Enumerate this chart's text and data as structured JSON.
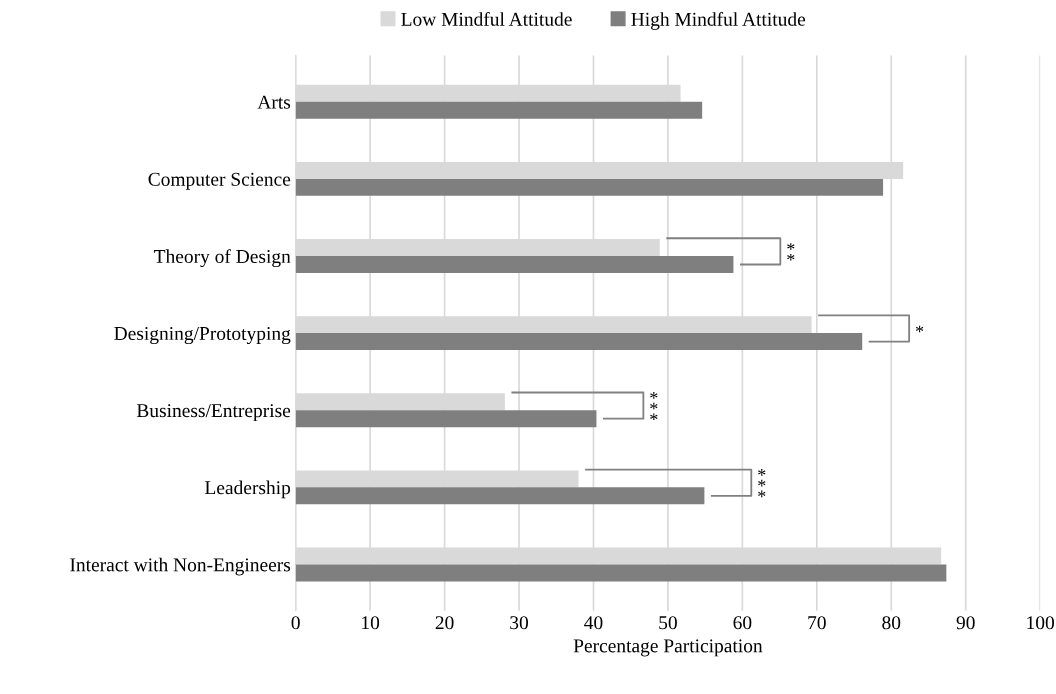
{
  "chart_data": {
    "type": "bar",
    "orientation": "horizontal",
    "xlabel": "Percentage Participation",
    "categories": [
      "Arts",
      "Computer Science",
      "Theory of Design",
      "Designing/Prototyping",
      "Business/Entreprise",
      "Leadership",
      "Interact with Non-Engineers"
    ],
    "series": [
      {
        "name": "Low Mindful Attitude",
        "color": "#d9d9d9",
        "values": [
          51.7,
          81.6,
          48.9,
          69.3,
          28.1,
          38.0,
          86.7
        ]
      },
      {
        "name": "High Mindful Attitude",
        "color": "#7f7f7f",
        "values": [
          54.6,
          78.9,
          58.8,
          76.1,
          40.4,
          54.9,
          87.4
        ]
      }
    ],
    "xlim": [
      0,
      100
    ],
    "xticks": [
      0,
      10,
      20,
      30,
      40,
      50,
      60,
      70,
      80,
      90,
      100
    ],
    "grid": "x",
    "legend": "top",
    "annotations": [
      "**",
      "*",
      "***",
      "***"
    ]
  }
}
